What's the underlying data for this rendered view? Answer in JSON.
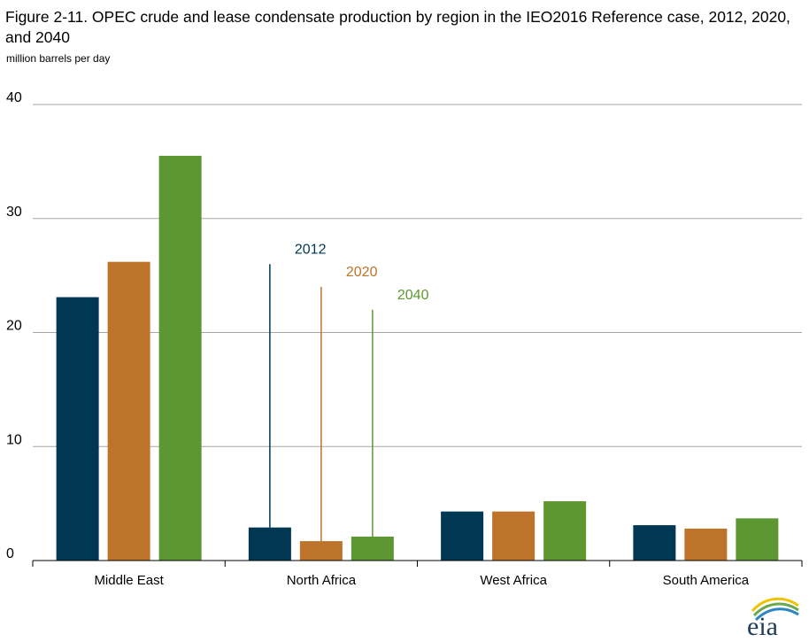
{
  "title": "Figure 2-11. OPEC crude and lease condensate production by region in the IEO2016 Reference case, 2012, 2020, and 2040",
  "unit_label": "million barrels per day",
  "logo_text": "eia",
  "colors": {
    "2012": "#003853",
    "2020": "#bd732a",
    "2040": "#5d9732",
    "grid": "#a6a6a6"
  },
  "chart_data": {
    "type": "bar",
    "title": "Figure 2-11. OPEC crude and lease condensate production by region in the IEO2016 Reference case, 2012, 2020, and 2040",
    "ylabel": "million barrels per day",
    "xlabel": "",
    "ylim": [
      0,
      40
    ],
    "yticks": [
      "0",
      "10",
      "20",
      "30",
      "40"
    ],
    "grid": true,
    "categories": [
      "Middle East",
      "North Africa",
      "West Africa",
      "South America"
    ],
    "series": [
      {
        "name": "2012",
        "color": "#003853",
        "values": [
          23.1,
          2.9,
          4.3,
          3.1
        ]
      },
      {
        "name": "2020",
        "color": "#bd732a",
        "values": [
          26.2,
          1.7,
          4.3,
          2.8
        ]
      },
      {
        "name": "2040",
        "color": "#5d9732",
        "values": [
          35.5,
          2.1,
          5.2,
          3.7
        ]
      }
    ],
    "annotations": [
      {
        "series": "2012",
        "text": "2012",
        "category": "North Africa",
        "line_to": 26.0
      },
      {
        "series": "2020",
        "text": "2020",
        "category": "North Africa",
        "line_to": 24.0
      },
      {
        "series": "2040",
        "text": "2040",
        "category": "North Africa",
        "line_to": 22.0
      }
    ]
  }
}
